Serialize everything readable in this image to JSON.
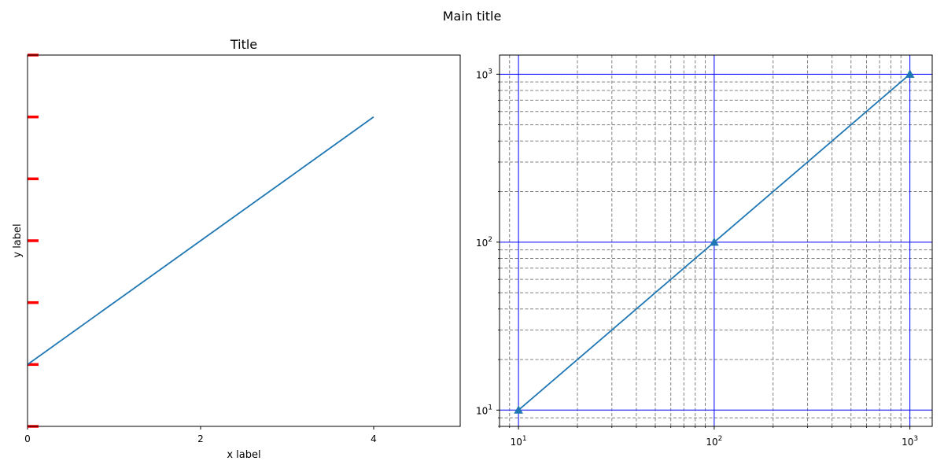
{
  "figure": {
    "suptitle": "Main title"
  },
  "colors": {
    "line": "#1f77b4",
    "red_tick": "#ff0000",
    "major_grid": "#0000ff",
    "minor_grid": "#808080",
    "axes": "#000000"
  },
  "chart_data": [
    {
      "type": "line",
      "title": "Title",
      "xlabel": "x label",
      "ylabel": "y label",
      "x": [
        0,
        1,
        2,
        3,
        4
      ],
      "y": [
        1,
        2,
        3,
        4,
        5
      ],
      "xlim": [
        0,
        5
      ],
      "ylim": [
        0,
        6
      ],
      "xticks": [
        0,
        2,
        4
      ],
      "yticks": [
        0,
        1,
        2,
        3,
        4,
        5,
        6
      ],
      "ytick_labels_visible": false,
      "ytick_style": "thick red marks",
      "grid": false
    },
    {
      "type": "line",
      "title": "",
      "xlabel": "",
      "ylabel": "",
      "x": [
        10,
        100,
        1000
      ],
      "y": [
        10,
        100,
        1000
      ],
      "marker": "triangle",
      "xscale": "log",
      "yscale": "log",
      "xlim": [
        8,
        1300
      ],
      "ylim": [
        8,
        1300
      ],
      "xticks": [
        10,
        100,
        1000
      ],
      "yticks": [
        10,
        100,
        1000
      ],
      "xtick_labels": [
        {
          "base": "10",
          "exp": "1"
        },
        {
          "base": "10",
          "exp": "2"
        },
        {
          "base": "10",
          "exp": "3"
        }
      ],
      "ytick_labels": [
        {
          "base": "10",
          "exp": "1"
        },
        {
          "base": "10",
          "exp": "2"
        },
        {
          "base": "10",
          "exp": "3"
        }
      ],
      "grid": true,
      "major_grid_style": "solid blue",
      "minor_grid_style": "dashed gray"
    }
  ]
}
